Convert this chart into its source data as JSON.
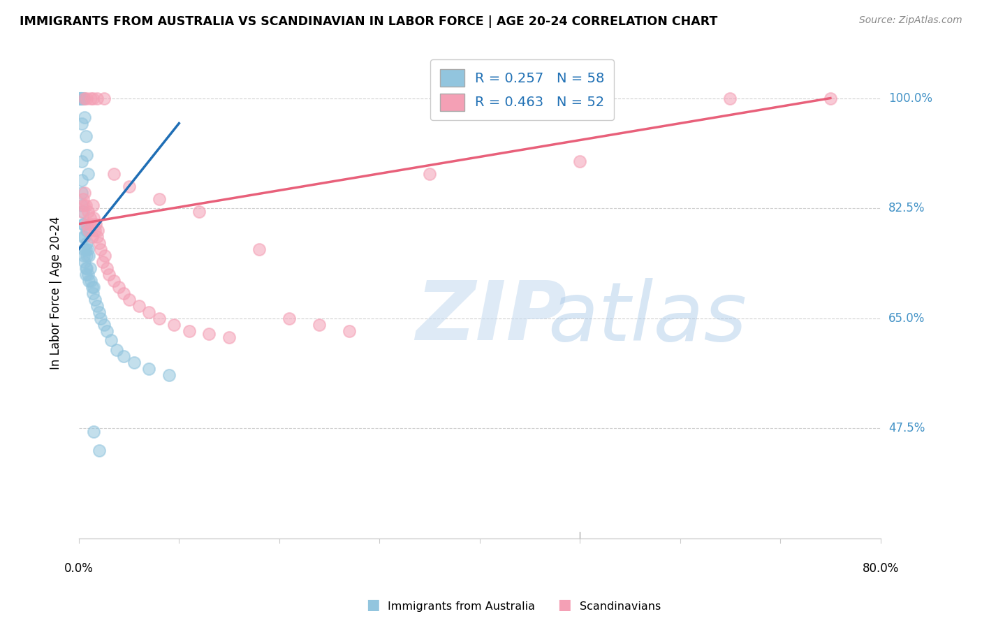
{
  "title": "IMMIGRANTS FROM AUSTRALIA VS SCANDINAVIAN IN LABOR FORCE | AGE 20-24 CORRELATION CHART",
  "source": "Source: ZipAtlas.com",
  "xlabel_bottom_left": "0.0%",
  "xlabel_bottom_right": "80.0%",
  "ylabel": "In Labor Force | Age 20-24",
  "ytick_labels": [
    "100.0%",
    "82.5%",
    "65.0%",
    "47.5%"
  ],
  "ytick_values": [
    1.0,
    0.825,
    0.65,
    0.475
  ],
  "xmin": 0.0,
  "xmax": 0.8,
  "ymin": 0.3,
  "ymax": 1.08,
  "legend_R_australia": "R = 0.257",
  "legend_N_australia": "N = 58",
  "legend_R_scandinavian": "R = 0.463",
  "legend_N_scandinavian": "N = 52",
  "color_australia": "#92c5de",
  "color_scandinavian": "#f4a0b5",
  "color_australia_line": "#1f6eb5",
  "color_scandinavian_line": "#e8607a",
  "color_legend_text": "#2171b5",
  "color_right_labels": "#4292c6",
  "australia_x": [
    0.001,
    0.001,
    0.001,
    0.002,
    0.002,
    0.002,
    0.002,
    0.003,
    0.003,
    0.003,
    0.003,
    0.003,
    0.004,
    0.004,
    0.004,
    0.005,
    0.005,
    0.005,
    0.006,
    0.006,
    0.007,
    0.007,
    0.007,
    0.008,
    0.008,
    0.008,
    0.008,
    0.009,
    0.009,
    0.01,
    0.01,
    0.011,
    0.012,
    0.013,
    0.014,
    0.015,
    0.016,
    0.018,
    0.02,
    0.022,
    0.025,
    0.028,
    0.032,
    0.038,
    0.045,
    0.055,
    0.07,
    0.09,
    0.002,
    0.003,
    0.004,
    0.005,
    0.006,
    0.007,
    0.008,
    0.009,
    0.015,
    0.02
  ],
  "australia_y": [
    1.0,
    1.0,
    1.0,
    1.0,
    1.0,
    1.0,
    1.0,
    0.96,
    0.9,
    0.87,
    0.85,
    0.83,
    0.82,
    0.8,
    0.78,
    0.8,
    0.76,
    0.75,
    0.78,
    0.74,
    0.76,
    0.73,
    0.72,
    0.79,
    0.77,
    0.75,
    0.73,
    0.76,
    0.72,
    0.75,
    0.71,
    0.73,
    0.71,
    0.7,
    0.69,
    0.7,
    0.68,
    0.67,
    0.66,
    0.65,
    0.64,
    0.63,
    0.615,
    0.6,
    0.59,
    0.58,
    0.57,
    0.56,
    1.0,
    1.0,
    1.0,
    1.0,
    0.97,
    0.94,
    0.91,
    0.88,
    0.47,
    0.44
  ],
  "scandinavian_x": [
    0.003,
    0.004,
    0.005,
    0.006,
    0.007,
    0.008,
    0.009,
    0.01,
    0.011,
    0.012,
    0.013,
    0.014,
    0.015,
    0.016,
    0.017,
    0.018,
    0.019,
    0.02,
    0.022,
    0.024,
    0.026,
    0.028,
    0.03,
    0.035,
    0.04,
    0.045,
    0.05,
    0.06,
    0.07,
    0.08,
    0.095,
    0.11,
    0.13,
    0.15,
    0.18,
    0.21,
    0.24,
    0.27,
    0.35,
    0.5,
    0.65,
    0.75,
    0.006,
    0.008,
    0.012,
    0.014,
    0.018,
    0.025,
    0.035,
    0.05,
    0.08,
    0.12
  ],
  "scandinavian_y": [
    0.82,
    0.84,
    0.83,
    0.85,
    0.83,
    0.8,
    0.82,
    0.79,
    0.81,
    0.8,
    0.78,
    0.83,
    0.81,
    0.79,
    0.8,
    0.78,
    0.79,
    0.77,
    0.76,
    0.74,
    0.75,
    0.73,
    0.72,
    0.71,
    0.7,
    0.69,
    0.68,
    0.67,
    0.66,
    0.65,
    0.64,
    0.63,
    0.625,
    0.62,
    0.76,
    0.65,
    0.64,
    0.63,
    0.88,
    0.9,
    1.0,
    1.0,
    1.0,
    1.0,
    1.0,
    1.0,
    1.0,
    1.0,
    0.88,
    0.86,
    0.84,
    0.82
  ],
  "aus_line_x0": 0.0,
  "aus_line_x1": 0.1,
  "aus_line_y0": 0.76,
  "aus_line_y1": 0.96,
  "sca_line_x0": 0.0,
  "sca_line_x1": 0.75,
  "sca_line_y0": 0.8,
  "sca_line_y1": 1.0
}
